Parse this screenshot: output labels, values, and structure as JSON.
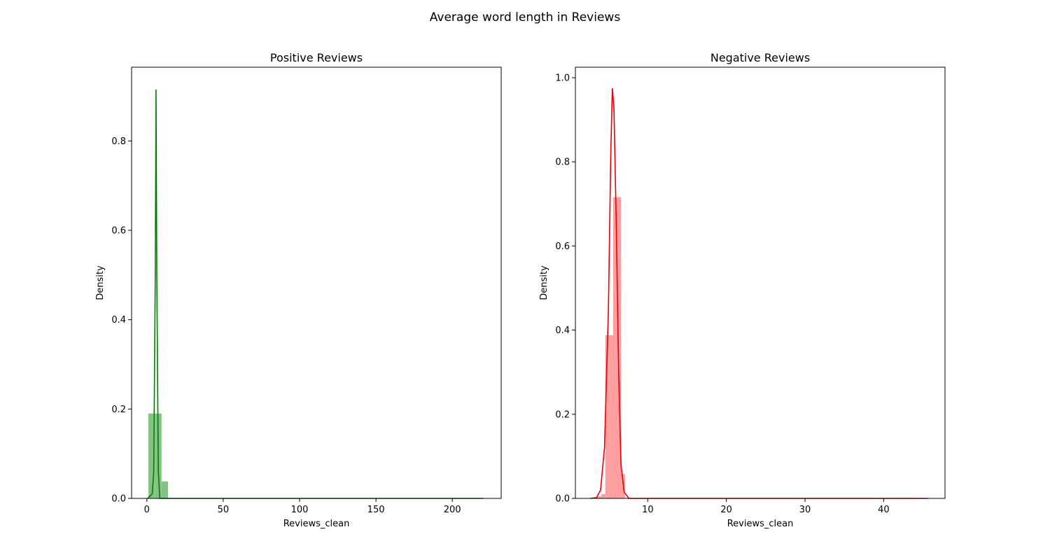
{
  "suptitle": "Average word length in Reviews",
  "chart_data": [
    {
      "type": "histogram",
      "title": "Positive Reviews",
      "xlabel": "Reviews_clean",
      "ylabel": "Density",
      "color": "#008000",
      "bar_color": "#7fbf7f",
      "xlim": [
        -10,
        232
      ],
      "ylim": [
        0,
        0.965
      ],
      "xticks": [
        0,
        50,
        100,
        150,
        200
      ],
      "yticks": [
        0.0,
        0.2,
        0.4,
        0.6,
        0.8
      ],
      "ytick_labels": [
        "0.0",
        "0.2",
        "0.4",
        "0.6",
        "0.8"
      ],
      "bins": [
        {
          "x0": 1,
          "x1": 5.3,
          "density": 0.19
        },
        {
          "x0": 5.3,
          "x1": 9.6,
          "density": 0.19
        },
        {
          "x0": 9.6,
          "x1": 13.9,
          "density": 0.038
        }
      ],
      "kde": [
        [
          0.5,
          0.0
        ],
        [
          3.5,
          0.01
        ],
        [
          4.5,
          0.06
        ],
        [
          5.5,
          0.5
        ],
        [
          6.0,
          0.915
        ],
        [
          6.5,
          0.5
        ],
        [
          7.5,
          0.06
        ],
        [
          8.5,
          0.0
        ],
        [
          220,
          0.0
        ]
      ]
    },
    {
      "type": "histogram",
      "title": "Negative Reviews",
      "xlabel": "Reviews_clean",
      "ylabel": "Density",
      "color": "#e8000b",
      "bar_color": "#ff9999",
      "xlim": [
        0.8,
        47.8
      ],
      "ylim": [
        0,
        1.025
      ],
      "xticks": [
        10,
        20,
        30,
        40
      ],
      "yticks": [
        0.0,
        0.2,
        0.4,
        0.6,
        0.8,
        1.0
      ],
      "ytick_labels": [
        "0.0",
        "0.2",
        "0.4",
        "0.6",
        "0.8",
        "1.0"
      ],
      "bins": [
        {
          "x0": 3.6,
          "x1": 4.1,
          "density": 0.005
        },
        {
          "x0": 4.1,
          "x1": 4.6,
          "density": 0.01
        },
        {
          "x0": 4.6,
          "x1": 5.1,
          "density": 0.388
        },
        {
          "x0": 5.1,
          "x1": 5.6,
          "density": 0.388
        },
        {
          "x0": 5.6,
          "x1": 6.1,
          "density": 0.716
        },
        {
          "x0": 6.1,
          "x1": 6.6,
          "density": 0.716
        },
        {
          "x0": 6.6,
          "x1": 7.1,
          "density": 0.058
        }
      ],
      "kde": [
        [
          2.7,
          0.0
        ],
        [
          3.5,
          0.002
        ],
        [
          4.0,
          0.02
        ],
        [
          4.5,
          0.12
        ],
        [
          5.0,
          0.45
        ],
        [
          5.3,
          0.82
        ],
        [
          5.5,
          0.975
        ],
        [
          5.7,
          0.93
        ],
        [
          6.0,
          0.65
        ],
        [
          6.3,
          0.3
        ],
        [
          6.6,
          0.08
        ],
        [
          7.0,
          0.015
        ],
        [
          7.6,
          0.0
        ],
        [
          45.6,
          0.0
        ]
      ]
    }
  ]
}
